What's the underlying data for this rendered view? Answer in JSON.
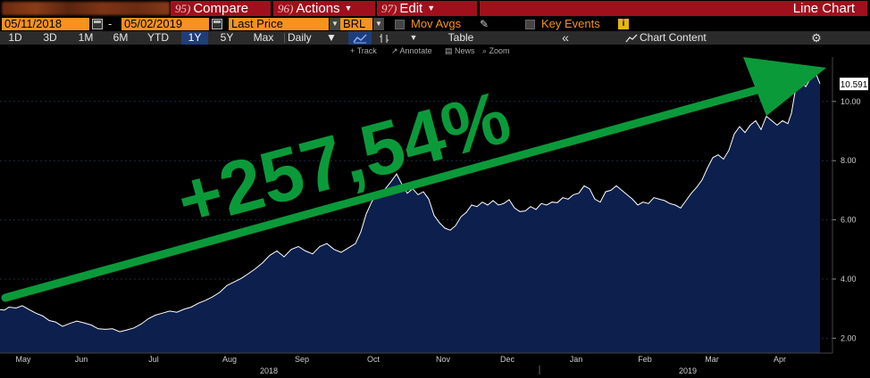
{
  "header": {
    "compare": {
      "num": "95)",
      "label": "Compare"
    },
    "actions": {
      "num": "96)",
      "label": "Actions"
    },
    "edit": {
      "num": "97)",
      "label": "Edit"
    },
    "chart_title": "Line Chart"
  },
  "range": {
    "start": "05/11/2018",
    "end": "05/02/2019",
    "separator": "-",
    "field": "Last Price",
    "currency": "BRL",
    "mov_avgs": "Mov Avgs",
    "key_events": "Key Events",
    "info_glyph": "i"
  },
  "periods": [
    "1D",
    "3D",
    "1M",
    "6M",
    "YTD",
    "1Y",
    "5Y",
    "Max"
  ],
  "selected_period": "1Y",
  "frequency": "Daily",
  "toolbar": {
    "table": "Table",
    "chart_content": "Chart Content",
    "collapse_glyph": "«",
    "settings_icon": "gear-icon"
  },
  "tools": {
    "track": "Track",
    "annotate": "Annotate",
    "news": "News",
    "zoom": "Zoom"
  },
  "colors": {
    "accent": "#f6921e",
    "function_red": "#a0101c",
    "area_fill": "#0d1f4d",
    "line": "#ffffff",
    "annotation_green": "#0b9a3a"
  },
  "chart_data": {
    "type": "area",
    "title": "",
    "annotation": "+257,54%",
    "last_value": "10.591",
    "y_ticks": [
      "2.00",
      "4.00",
      "6.00",
      "8.00",
      "10.00"
    ],
    "ylim": [
      1.5,
      11.5
    ],
    "x_month_labels": [
      "May",
      "Jun",
      "Jul",
      "Aug",
      "Sep",
      "Oct",
      "Nov",
      "Dec",
      "Jan",
      "Feb",
      "Mar",
      "Apr"
    ],
    "x_year_labels": [
      "2018",
      "2019"
    ],
    "series": [
      {
        "values": [
          [
            0,
            2.97
          ],
          [
            5,
            2.95
          ],
          [
            10,
            3.05
          ],
          [
            18,
            3.02
          ],
          [
            25,
            3.1
          ],
          [
            32,
            2.98
          ],
          [
            40,
            2.85
          ],
          [
            48,
            2.75
          ],
          [
            55,
            2.6
          ],
          [
            62,
            2.55
          ],
          [
            70,
            2.4
          ],
          [
            78,
            2.5
          ],
          [
            86,
            2.58
          ],
          [
            94,
            2.52
          ],
          [
            102,
            2.45
          ],
          [
            110,
            2.32
          ],
          [
            118,
            2.3
          ],
          [
            126,
            2.32
          ],
          [
            134,
            2.22
          ],
          [
            142,
            2.28
          ],
          [
            150,
            2.35
          ],
          [
            158,
            2.48
          ],
          [
            166,
            2.66
          ],
          [
            174,
            2.78
          ],
          [
            182,
            2.85
          ],
          [
            190,
            2.92
          ],
          [
            198,
            2.88
          ],
          [
            206,
            2.98
          ],
          [
            214,
            3.05
          ],
          [
            222,
            3.18
          ],
          [
            230,
            3.28
          ],
          [
            238,
            3.4
          ],
          [
            246,
            3.55
          ],
          [
            254,
            3.78
          ],
          [
            262,
            3.9
          ],
          [
            270,
            4.02
          ],
          [
            278,
            4.18
          ],
          [
            286,
            4.35
          ],
          [
            294,
            4.55
          ],
          [
            302,
            4.8
          ],
          [
            310,
            4.95
          ],
          [
            318,
            4.75
          ],
          [
            326,
            5.0
          ],
          [
            334,
            5.1
          ],
          [
            342,
            4.95
          ],
          [
            350,
            4.85
          ],
          [
            358,
            5.1
          ],
          [
            366,
            5.2
          ],
          [
            374,
            5.0
          ],
          [
            382,
            4.9
          ],
          [
            390,
            5.05
          ],
          [
            398,
            5.2
          ],
          [
            404,
            5.6
          ],
          [
            410,
            6.2
          ],
          [
            416,
            6.6
          ],
          [
            422,
            6.9
          ],
          [
            430,
            7.0
          ],
          [
            438,
            7.3
          ],
          [
            444,
            7.55
          ],
          [
            450,
            7.2
          ],
          [
            456,
            6.9
          ],
          [
            462,
            7.05
          ],
          [
            468,
            6.85
          ],
          [
            474,
            6.95
          ],
          [
            480,
            6.7
          ],
          [
            486,
            6.15
          ],
          [
            492,
            5.9
          ],
          [
            498,
            5.72
          ],
          [
            504,
            5.65
          ],
          [
            510,
            5.8
          ],
          [
            516,
            6.1
          ],
          [
            522,
            6.25
          ],
          [
            528,
            6.5
          ],
          [
            534,
            6.45
          ],
          [
            540,
            6.6
          ],
          [
            546,
            6.5
          ],
          [
            552,
            6.65
          ],
          [
            558,
            6.5
          ],
          [
            564,
            6.55
          ],
          [
            570,
            6.68
          ],
          [
            576,
            6.4
          ],
          [
            582,
            6.28
          ],
          [
            588,
            6.3
          ],
          [
            594,
            6.45
          ],
          [
            600,
            6.35
          ],
          [
            606,
            6.55
          ],
          [
            612,
            6.5
          ],
          [
            618,
            6.6
          ],
          [
            624,
            6.58
          ],
          [
            630,
            6.75
          ],
          [
            636,
            6.7
          ],
          [
            642,
            6.85
          ],
          [
            648,
            6.9
          ],
          [
            654,
            7.15
          ],
          [
            660,
            7.05
          ],
          [
            666,
            6.7
          ],
          [
            672,
            6.6
          ],
          [
            678,
            6.95
          ],
          [
            684,
            7.0
          ],
          [
            690,
            7.15
          ],
          [
            696,
            7.0
          ],
          [
            702,
            6.85
          ],
          [
            708,
            6.7
          ],
          [
            714,
            6.5
          ],
          [
            720,
            6.6
          ],
          [
            726,
            6.55
          ],
          [
            732,
            6.75
          ],
          [
            738,
            6.7
          ],
          [
            744,
            6.65
          ],
          [
            750,
            6.55
          ],
          [
            756,
            6.5
          ],
          [
            762,
            6.4
          ],
          [
            768,
            6.65
          ],
          [
            774,
            6.9
          ],
          [
            780,
            7.1
          ],
          [
            786,
            7.35
          ],
          [
            792,
            7.75
          ],
          [
            798,
            8.1
          ],
          [
            804,
            8.2
          ],
          [
            810,
            8.05
          ],
          [
            816,
            8.35
          ],
          [
            822,
            8.9
          ],
          [
            828,
            9.15
          ],
          [
            834,
            8.95
          ],
          [
            840,
            9.2
          ],
          [
            846,
            9.35
          ],
          [
            852,
            9.05
          ],
          [
            858,
            9.5
          ],
          [
            864,
            9.35
          ],
          [
            870,
            9.2
          ],
          [
            876,
            9.35
          ],
          [
            882,
            9.25
          ],
          [
            886,
            9.6
          ],
          [
            890,
            10.3
          ],
          [
            894,
            10.5
          ],
          [
            898,
            10.65
          ],
          [
            902,
            10.5
          ],
          [
            906,
            10.7
          ],
          [
            910,
            10.8
          ],
          [
            914,
            10.9
          ],
          [
            918,
            10.6
          ]
        ]
      }
    ],
    "grid": true,
    "legend": "none"
  }
}
